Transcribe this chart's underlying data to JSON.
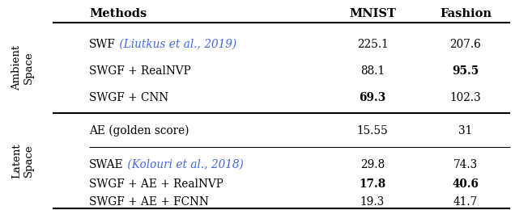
{
  "header": [
    "Methods",
    "MNIST",
    "Fashion"
  ],
  "ambient_label": "Ambient\nSpace",
  "latent_label": "Latent\nSpace",
  "ambient_rows": [
    {
      "method": "SWF",
      "citation": " (Liutkus et al., 2019)",
      "mnist": "225.1",
      "fashion": "207.6",
      "mnist_bold": false,
      "fashion_bold": false
    },
    {
      "method": "SWGF + RealNVP",
      "citation": "",
      "mnist": "88.1",
      "fashion": "95.5",
      "mnist_bold": false,
      "fashion_bold": true
    },
    {
      "method": "SWGF + CNN",
      "citation": "",
      "mnist": "69.3",
      "fashion": "102.3",
      "mnist_bold": true,
      "fashion_bold": false
    }
  ],
  "latent_golden": {
    "method": "AE (golden score)",
    "citation": "",
    "mnist": "15.55",
    "fashion": "31",
    "mnist_bold": false,
    "fashion_bold": false
  },
  "latent_rows": [
    {
      "method": "SWAE",
      "citation": " (Kolouri et al., 2018)",
      "mnist": "29.8",
      "fashion": "74.3",
      "mnist_bold": false,
      "fashion_bold": false
    },
    {
      "method": "SWGF + AE + RealNVP",
      "citation": "",
      "mnist": "17.8",
      "fashion": "40.6",
      "mnist_bold": true,
      "fashion_bold": true
    },
    {
      "method": "SWGF + AE + FCNN",
      "citation": "",
      "mnist": "19.3",
      "fashion": "41.7",
      "mnist_bold": false,
      "fashion_bold": false
    }
  ],
  "citation_color": "#4169E1",
  "bg_color": "#ffffff",
  "text_color": "#000000"
}
